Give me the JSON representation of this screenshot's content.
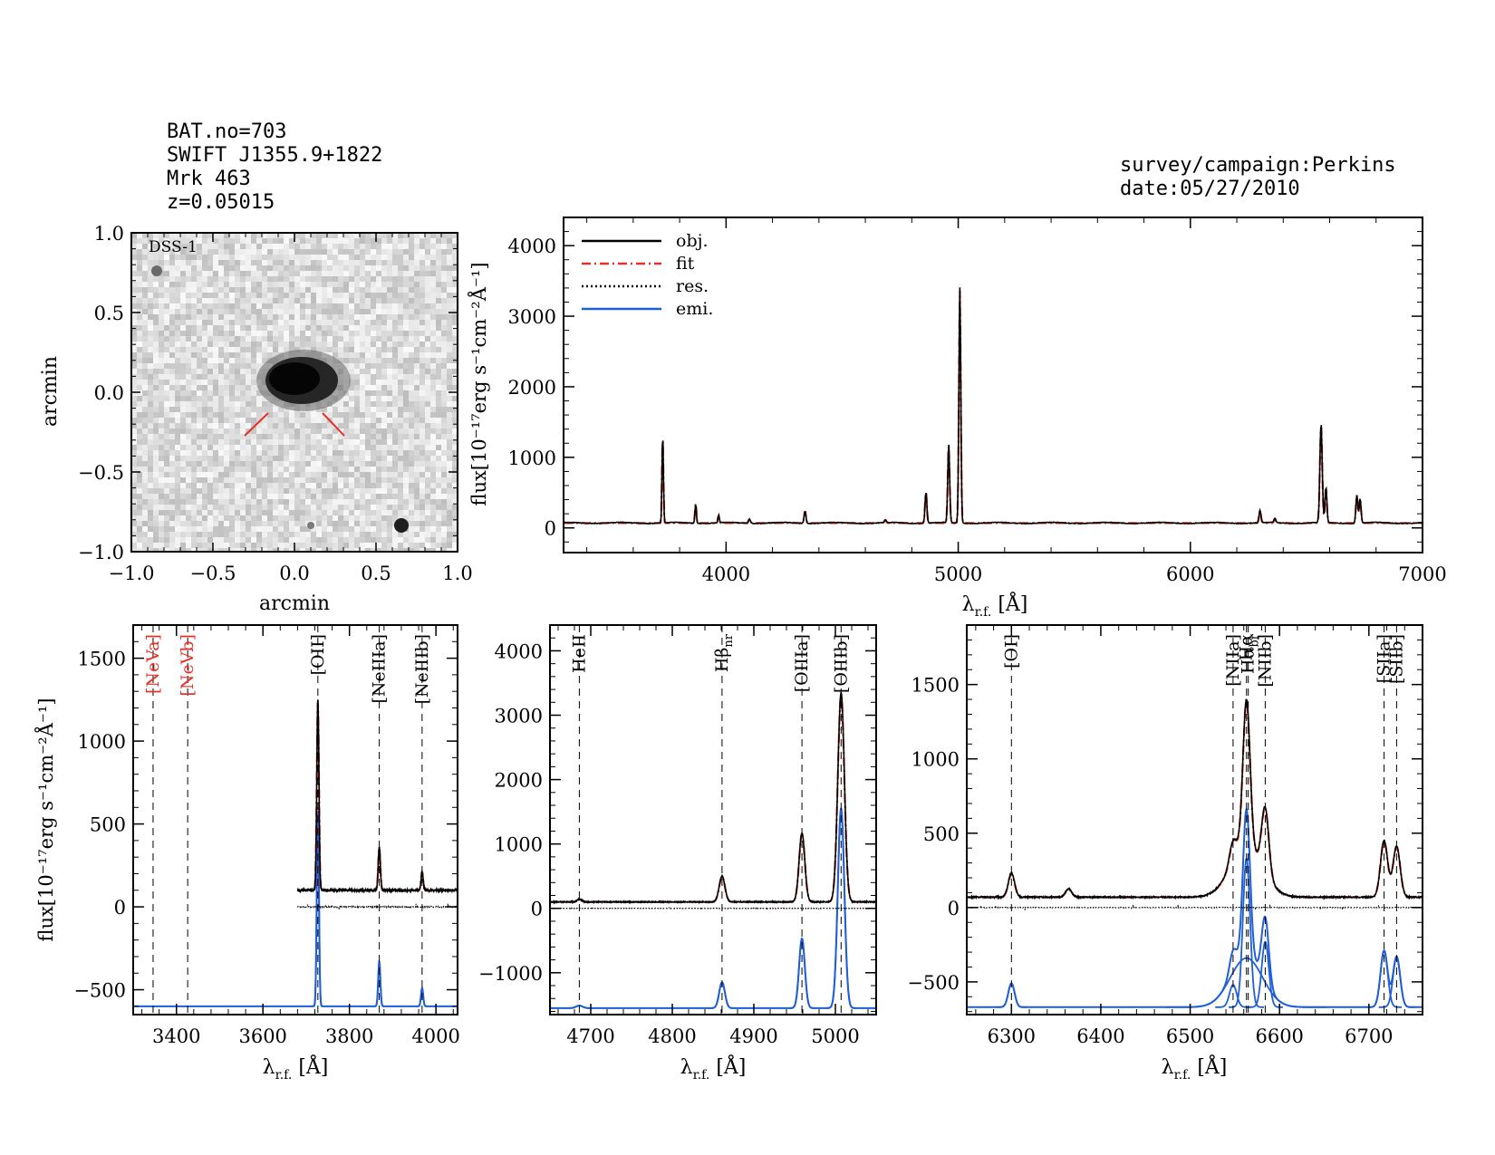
{
  "header": {
    "bat_no": "BAT.no=703",
    "swift": "SWIFT J1355.9+1822",
    "name": "Mrk 463",
    "redshift": "z=0.05015",
    "survey": "survey/campaign:Perkins",
    "date": "date:05/27/2010"
  },
  "image_panel": {
    "label": "DSS-1",
    "xlabel": "arcmin",
    "ylabel": "arcmin",
    "xticks": [
      "−1.0",
      "−0.5",
      "0.0",
      "0.5",
      "1.0"
    ],
    "yticks": [
      "1.0",
      "0.5",
      "0.0",
      "−0.5",
      "−1.0"
    ],
    "marker_color": "#e8302a"
  },
  "colors": {
    "obj": "#000000",
    "fit": "#e8302a",
    "res": "#000000",
    "emi": "#1f5fd6",
    "red_label": "#e8302a"
  },
  "axis_text": {
    "flux_ylabel": "flux[10⁻¹⁷erg s⁻¹cm⁻²Å⁻¹]",
    "wave_xlabel_main": "λ",
    "wave_xlabel_sub": "r.f.",
    "wave_xlabel_unit": " [Å]"
  },
  "chart_data": [
    {
      "id": "full",
      "type": "line",
      "xlim": [
        3300,
        7000
      ],
      "ylim": [
        -350,
        4400
      ],
      "xticks": [
        4000,
        5000,
        6000,
        7000
      ],
      "yticks": [
        0,
        1000,
        2000,
        3000,
        4000
      ],
      "legend": [
        {
          "name": "obj.",
          "style": "solid",
          "color": "#000000"
        },
        {
          "name": "fit",
          "style": "dashdot",
          "color": "#e8302a"
        },
        {
          "name": "res.",
          "style": "dotted",
          "color": "#000000"
        },
        {
          "name": "emi.",
          "style": "solid",
          "color": "#1f5fd6"
        }
      ],
      "legend_position": "top-left",
      "continuum": 70,
      "lines": [
        {
          "x": 3727,
          "amp": 1250,
          "w": 3
        },
        {
          "x": 3869,
          "amp": 280,
          "w": 3
        },
        {
          "x": 3968,
          "amp": 110,
          "w": 3
        },
        {
          "x": 4101,
          "amp": 60,
          "w": 4
        },
        {
          "x": 4340,
          "amp": 170,
          "w": 4
        },
        {
          "x": 4686,
          "amp": 40,
          "w": 4
        },
        {
          "x": 4861,
          "amp": 440,
          "w": 4
        },
        {
          "x": 4959,
          "amp": 1120,
          "w": 4
        },
        {
          "x": 5007,
          "amp": 3350,
          "w": 4
        },
        {
          "x": 6300,
          "amp": 180,
          "w": 4
        },
        {
          "x": 6364,
          "amp": 60,
          "w": 4
        },
        {
          "x": 6563,
          "amp": 1400,
          "w": 5
        },
        {
          "x": 6584,
          "amp": 500,
          "w": 4
        },
        {
          "x": 6717,
          "amp": 400,
          "w": 4
        },
        {
          "x": 6731,
          "amp": 350,
          "w": 4
        }
      ]
    },
    {
      "id": "panel-OII",
      "type": "line",
      "xlim": [
        3300,
        4050
      ],
      "ylim": [
        -650,
        1700
      ],
      "xticks": [
        3400,
        3600,
        3800,
        4000
      ],
      "yticks": [
        -500,
        0,
        500,
        1000,
        1500
      ],
      "data_start": 3680,
      "continuum": 100,
      "lines": [
        {
          "x": 3727,
          "amp": 1150,
          "w": 2.5
        },
        {
          "x": 3869,
          "amp": 260,
          "w": 2.5
        },
        {
          "x": 3968,
          "amp": 110,
          "w": 2.5
        }
      ],
      "emission_baseline": -600,
      "emission": [
        {
          "x": 3727,
          "amp": 1180,
          "w": 2.5
        },
        {
          "x": 3869,
          "amp": 270,
          "w": 2.5
        },
        {
          "x": 3968,
          "amp": 110,
          "w": 2.5
        }
      ],
      "markers": [
        {
          "x": 3346,
          "label": "[NeVa]",
          "red": true
        },
        {
          "x": 3426,
          "label": "[NeVb]",
          "red": true
        },
        {
          "x": 3727,
          "label": "[OII]",
          "red": false
        },
        {
          "x": 3869,
          "label": "[NeIIIa]",
          "red": false
        },
        {
          "x": 3968,
          "label": "[NeIIIb]",
          "red": false
        }
      ]
    },
    {
      "id": "panel-Hb",
      "type": "line",
      "xlim": [
        4650,
        5050
      ],
      "ylim": [
        -1650,
        4400
      ],
      "xticks": [
        4700,
        4800,
        4900,
        5000
      ],
      "yticks": [
        -1000,
        0,
        1000,
        2000,
        3000,
        4000
      ],
      "data_start": 4650,
      "continuum": 100,
      "lines": [
        {
          "x": 4686,
          "amp": 40,
          "w": 3
        },
        {
          "x": 4861,
          "amp": 400,
          "w": 3.5
        },
        {
          "x": 4959,
          "amp": 1070,
          "w": 3.5
        },
        {
          "x": 5007,
          "amp": 3250,
          "w": 4
        }
      ],
      "emission_baseline": -1550,
      "emission": [
        {
          "x": 4686,
          "amp": 40,
          "w": 4
        },
        {
          "x": 4861,
          "amp": 400,
          "w": 3.5
        },
        {
          "x": 4959,
          "amp": 1080,
          "w": 3.5
        },
        {
          "x": 5007,
          "amp": 3100,
          "w": 4
        }
      ],
      "markers": [
        {
          "x": 4686,
          "label": "HeII",
          "red": false
        },
        {
          "x": 4861,
          "label": "Hβ",
          "sub": "nr",
          "red": false
        },
        {
          "x": 4959,
          "label": "[OIIIa]",
          "red": false
        },
        {
          "x": 5007,
          "label": "[OIIIb]",
          "red": false
        }
      ]
    },
    {
      "id": "panel-Ha",
      "type": "line",
      "xlim": [
        6250,
        6760
      ],
      "ylim": [
        -720,
        1900
      ],
      "xticks": [
        6300,
        6400,
        6500,
        6600,
        6700
      ],
      "yticks": [
        -500,
        0,
        500,
        1000,
        1500
      ],
      "data_start": 6250,
      "continuum": 70,
      "lines": [
        {
          "x": 6300,
          "amp": 160,
          "w": 3.5
        },
        {
          "x": 6364,
          "amp": 55,
          "w": 3.5
        },
        {
          "x": 6548,
          "amp": 150,
          "w": 4
        },
        {
          "x": 6563,
          "amp": 1000,
          "w": 4
        },
        {
          "x": 6563,
          "amp": 330,
          "w": 18
        },
        {
          "x": 6584,
          "amp": 440,
          "w": 4
        },
        {
          "x": 6717,
          "amp": 380,
          "w": 4
        },
        {
          "x": 6731,
          "amp": 340,
          "w": 4
        }
      ],
      "emission_baseline": -670,
      "emission": [
        {
          "x": 6300,
          "amp": 160,
          "w": 3.5
        },
        {
          "x": 6548,
          "amp": 150,
          "w": 4
        },
        {
          "x": 6563,
          "amp": 1000,
          "w": 4
        },
        {
          "x": 6563,
          "amp": 330,
          "w": 18
        },
        {
          "x": 6584,
          "amp": 440,
          "w": 4
        },
        {
          "x": 6717,
          "amp": 380,
          "w": 4
        },
        {
          "x": 6731,
          "amp": 340,
          "w": 4
        }
      ],
      "markers": [
        {
          "x": 6300,
          "label": "[OI]",
          "red": false
        },
        {
          "x": 6548,
          "label": "[NIIa]",
          "red": false
        },
        {
          "x": 6563,
          "label": "Hα",
          "red": false
        },
        {
          "x": 6565,
          "label": "Hα",
          "sub": "br",
          "red": false
        },
        {
          "x": 6584,
          "label": "[NIIb]",
          "red": false
        },
        {
          "x": 6717,
          "label": "[SIIa]",
          "red": false
        },
        {
          "x": 6731,
          "label": "[SIIb]",
          "red": false
        }
      ]
    }
  ]
}
